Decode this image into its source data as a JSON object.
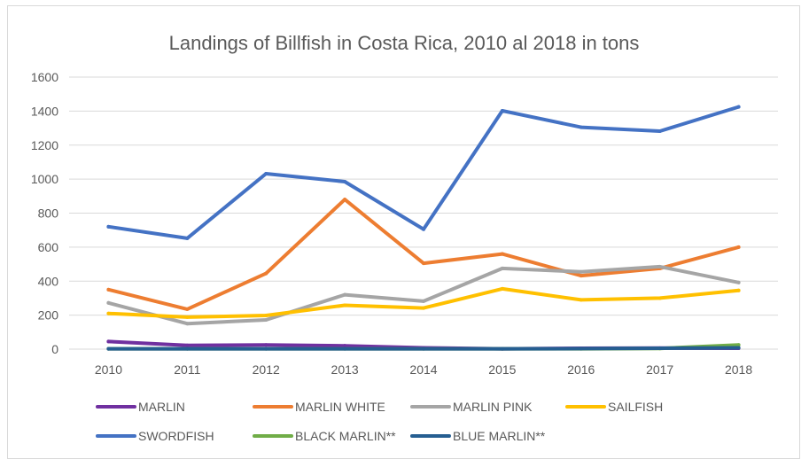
{
  "chart_data": {
    "type": "line",
    "title": "Landings of Billfish in Costa Rica, 2010 al 2018 in tons",
    "xlabel": "",
    "ylabel": "",
    "x": [
      "2010",
      "2011",
      "2012",
      "2013",
      "2014",
      "2015",
      "2016",
      "2017",
      "2018"
    ],
    "ylim": [
      0,
      1600
    ],
    "yticks": [
      "0",
      "200",
      "400",
      "600",
      "800",
      "1000",
      "1200",
      "1400",
      "1600"
    ],
    "grid": true,
    "legend_position": "bottom",
    "series": [
      {
        "name": "MARLIN",
        "color": "#7030a0",
        "values": [
          45,
          22,
          25,
          20,
          8,
          2,
          5,
          6,
          5
        ]
      },
      {
        "name": "MARLIN WHITE",
        "color": "#ed7d31",
        "values": [
          350,
          235,
          445,
          880,
          505,
          560,
          432,
          475,
          600
        ]
      },
      {
        "name": "MARLIN PINK",
        "color": "#a5a5a5",
        "values": [
          272,
          150,
          172,
          320,
          282,
          475,
          455,
          485,
          392
        ]
      },
      {
        "name": "SAILFISH",
        "color": "#ffc000",
        "values": [
          210,
          188,
          198,
          258,
          242,
          355,
          290,
          300,
          345
        ]
      },
      {
        "name": "SWORDFISH",
        "color": "#4472c4",
        "values": [
          720,
          652,
          1032,
          985,
          705,
          1402,
          1305,
          1282,
          1425
        ]
      },
      {
        "name": "BLACK MARLIN**",
        "color": "#70ad47",
        "values": [
          2,
          2,
          2,
          2,
          2,
          2,
          2,
          4,
          25
        ]
      },
      {
        "name": "BLUE MARLIN**",
        "color": "#255e91",
        "values": [
          2,
          2,
          2,
          2,
          2,
          2,
          3,
          5,
          8
        ]
      }
    ]
  }
}
